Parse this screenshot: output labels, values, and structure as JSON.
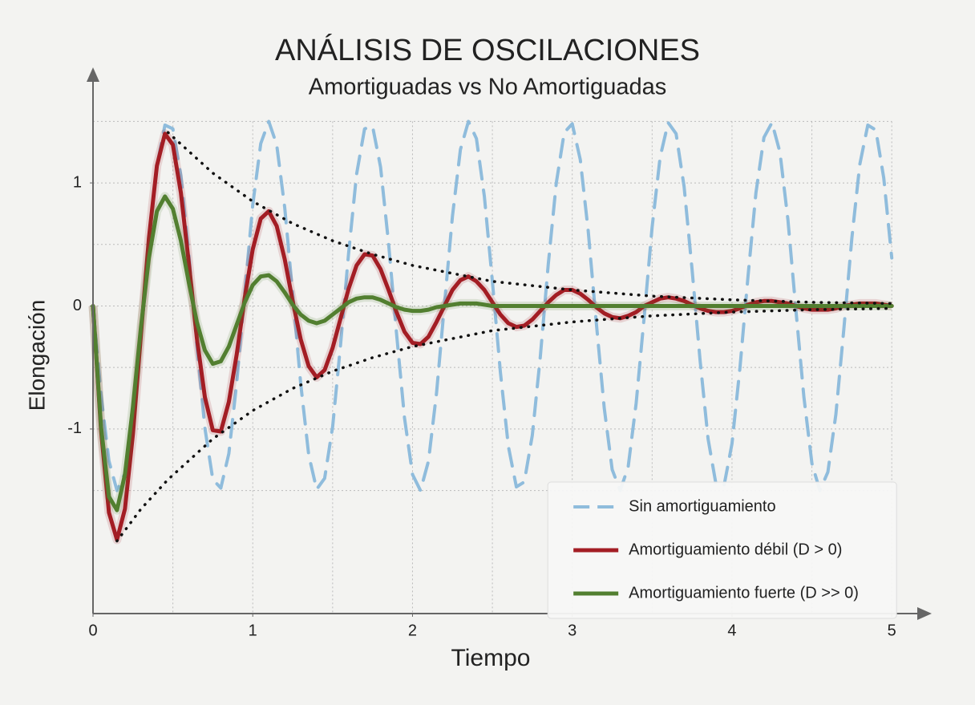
{
  "chart_data": {
    "type": "line",
    "title": "ANÁLISIS DE OSCILACIONES",
    "subtitle": "Amortiguadas vs No Amortiguadas",
    "x_label": "Tiempo",
    "y_label": "Elongación",
    "xlim": [
      0,
      5.24
    ],
    "ylim": [
      -2.5,
      1.9
    ],
    "xticks": [
      0,
      1,
      2,
      3,
      4,
      5
    ],
    "yticks": [
      -1,
      0,
      1
    ],
    "xgrid": [
      0.5,
      1,
      1.5,
      2,
      2.5,
      3,
      3.5,
      4,
      4.5,
      5
    ],
    "ygrid": [
      -1.5,
      -1,
      -0.5,
      0,
      0.5,
      1,
      1.5
    ],
    "grid": true,
    "legend": "lower right",
    "x": [
      0,
      0.05,
      0.1,
      0.15,
      0.2,
      0.25,
      0.3,
      0.35,
      0.4,
      0.45,
      0.5,
      0.55,
      0.6,
      0.65,
      0.7,
      0.75,
      0.8,
      0.85,
      0.9,
      0.95,
      1,
      1.05,
      1.1,
      1.15,
      1.2,
      1.25,
      1.3,
      1.35,
      1.4,
      1.45,
      1.5,
      1.55,
      1.6,
      1.65,
      1.7,
      1.75,
      1.8,
      1.85,
      1.9,
      1.95,
      2,
      2.05,
      2.1,
      2.15,
      2.2,
      2.25,
      2.3,
      2.35,
      2.4,
      2.45,
      2.5,
      2.55,
      2.6,
      2.65,
      2.7,
      2.75,
      2.8,
      2.85,
      2.9,
      2.95,
      3,
      3.05,
      3.1,
      3.15,
      3.2,
      3.25,
      3.3,
      3.35,
      3.4,
      3.45,
      3.5,
      3.55,
      3.6,
      3.65,
      3.7,
      3.75,
      3.8,
      3.85,
      3.9,
      3.95,
      4,
      4.05,
      4.1,
      4.15,
      4.2,
      4.25,
      4.3,
      4.35,
      4.4,
      4.45,
      4.5,
      4.55,
      4.6,
      4.65,
      4.7,
      4.75,
      4.8,
      4.85,
      4.9,
      4.95,
      5
    ],
    "series": [
      {
        "name": "Sin amortiguamiento",
        "color": "#8fbcdc",
        "dashed": true,
        "values": [
          0,
          -0.72,
          -1.26,
          -1.5,
          -1.36,
          -0.9,
          -0.21,
          0.53,
          1.14,
          1.47,
          1.44,
          1.06,
          0.42,
          -0.32,
          -0.99,
          -1.41,
          -1.48,
          -1.2,
          -0.62,
          0.11,
          0.82,
          1.32,
          1.5,
          1.31,
          0.8,
          0.1,
          -0.63,
          -1.21,
          -1.49,
          -1.4,
          -0.98,
          -0.31,
          0.43,
          1.07,
          1.44,
          1.46,
          1.13,
          0.51,
          -0.22,
          -0.91,
          -1.37,
          -1.5,
          -1.26,
          -0.71,
          0.01,
          0.73,
          1.27,
          1.5,
          1.36,
          0.89,
          0.2,
          -0.54,
          -1.14,
          -1.47,
          -1.43,
          -1.05,
          -0.41,
          0.34,
          1,
          1.41,
          1.48,
          1.19,
          0.61,
          -0.13,
          -0.83,
          -1.33,
          -1.5,
          -1.31,
          -0.79,
          -0.09,
          0.64,
          1.21,
          1.49,
          1.4,
          0.97,
          0.3,
          -0.44,
          -1.08,
          -1.45,
          -1.46,
          -1.12,
          -0.5,
          0.24,
          0.92,
          1.37,
          1.49,
          1.25,
          0.7,
          -0.03,
          -0.74,
          -1.28,
          -1.5,
          -1.35,
          -0.88,
          -0.19,
          0.55,
          1.15,
          1.47,
          1.43,
          1.04,
          0.39
        ]
      },
      {
        "name": "Amortiguamiento débil (D > 0)",
        "color": "#a31d24",
        "dashed": false,
        "values": [
          0,
          -1.01,
          -1.68,
          -1.9,
          -1.65,
          -1.04,
          -0.23,
          0.55,
          1.14,
          1.4,
          1.31,
          0.92,
          0.35,
          -0.26,
          -0.74,
          -1.01,
          -1.02,
          -0.78,
          -0.39,
          0.07,
          0.46,
          0.71,
          0.77,
          0.65,
          0.38,
          0.04,
          -0.27,
          -0.49,
          -0.58,
          -0.52,
          -0.34,
          -0.1,
          0.14,
          0.33,
          0.42,
          0.41,
          0.3,
          0.13,
          -0.05,
          -0.21,
          -0.3,
          -0.31,
          -0.25,
          -0.13,
          0,
          0.13,
          0.21,
          0.24,
          0.2,
          0.13,
          0.03,
          -0.07,
          -0.14,
          -0.17,
          -0.16,
          -0.11,
          -0.04,
          0.03,
          0.09,
          0.13,
          0.13,
          0.1,
          0.05,
          -0.01,
          -0.06,
          -0.09,
          -0.1,
          -0.08,
          -0.05,
          0,
          0.03,
          0.06,
          0.07,
          0.06,
          0.04,
          0.01,
          -0.02,
          -0.04,
          -0.05,
          -0.05,
          -0.04,
          -0.02,
          0.01,
          0.03,
          0.04,
          0.04,
          0.03,
          0.02,
          0,
          -0.02,
          -0.03,
          -0.03,
          -0.03,
          -0.02,
          0,
          0.01,
          0.02,
          0.02,
          0.02,
          0.01,
          0
        ]
      },
      {
        "name": "Amortiguamiento fuerte (D >> 0)",
        "color": "#527f30",
        "dashed": false,
        "values": [
          0,
          -0.98,
          -1.55,
          -1.66,
          -1.37,
          -0.82,
          -0.17,
          0.39,
          0.77,
          0.89,
          0.79,
          0.53,
          0.19,
          -0.13,
          -0.36,
          -0.47,
          -0.45,
          -0.33,
          -0.15,
          0.03,
          0.17,
          0.24,
          0.25,
          0.2,
          0.11,
          0.01,
          -0.07,
          -0.12,
          -0.14,
          -0.12,
          -0.07,
          -0.02,
          0.03,
          0.06,
          0.07,
          0.07,
          0.05,
          0.02,
          -0.01,
          -0.03,
          -0.04,
          -0.04,
          -0.03,
          -0.01,
          0,
          0.01,
          0.02,
          0.02,
          0.02,
          0.01,
          0,
          0,
          0,
          0,
          0,
          0,
          0,
          0,
          0,
          0,
          0,
          0,
          0,
          0,
          0,
          0,
          0,
          0,
          0,
          0,
          0,
          0,
          0,
          0,
          0,
          0,
          0,
          0,
          0,
          0,
          0,
          0,
          0,
          0,
          0,
          0,
          0,
          0,
          0,
          0,
          0,
          0,
          0,
          0,
          0,
          0,
          0,
          0,
          0,
          0,
          0
        ]
      }
    ],
    "envelope": {
      "color": "#111111",
      "x": [
        0.15,
        0.3,
        0.47,
        0.75,
        1,
        1.25,
        1.5,
        1.75,
        2,
        2.5,
        3,
        3.5,
        4,
        4.5,
        5
      ],
      "upper": [
        null,
        null,
        1.41,
        1.08,
        0.85,
        0.67,
        0.53,
        0.42,
        0.33,
        0.2,
        0.13,
        0.08,
        0.05,
        0.03,
        0.02
      ],
      "lower": [
        -1.91,
        -1.65,
        -1.41,
        -1.08,
        -0.85,
        -0.67,
        -0.53,
        -0.42,
        -0.33,
        -0.2,
        -0.13,
        -0.08,
        -0.05,
        -0.03,
        -0.02
      ]
    }
  }
}
